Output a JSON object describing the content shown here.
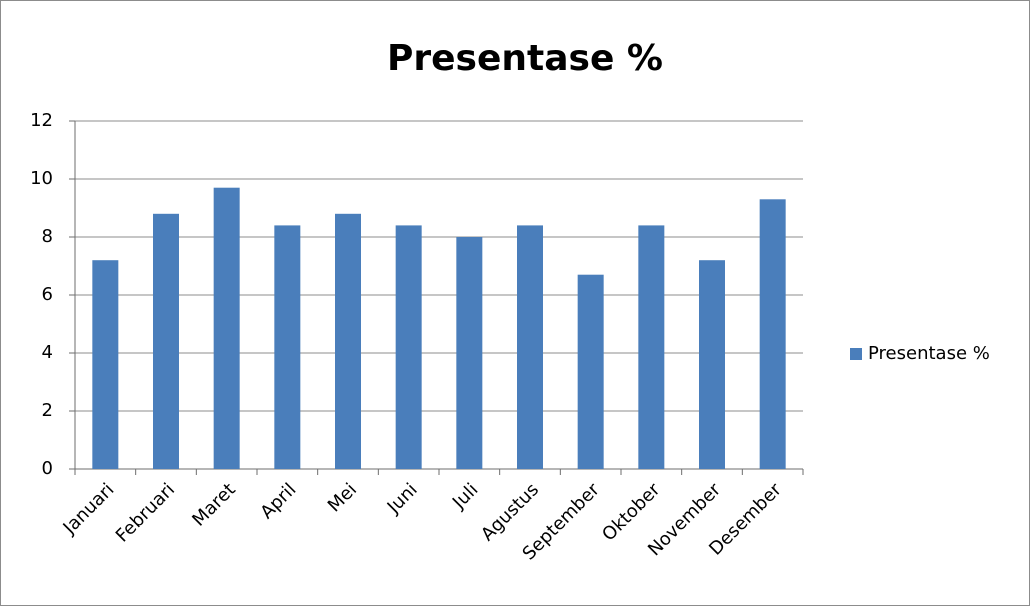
{
  "chart_data": {
    "type": "bar",
    "title": "Presentase %",
    "categories": [
      "Januari",
      "Februari",
      "Maret",
      "April",
      "Mei",
      "Juni",
      "Juli",
      "Agustus",
      "September",
      "Oktober",
      "November",
      "Desember"
    ],
    "series": [
      {
        "name": "Presentase %",
        "color": "#4a7ebb",
        "values": [
          7.2,
          8.8,
          9.7,
          8.4,
          8.8,
          8.4,
          8.0,
          8.4,
          6.7,
          8.4,
          7.2,
          9.3
        ]
      }
    ],
    "ylim": [
      0,
      12
    ],
    "yticks": [
      0,
      2,
      4,
      6,
      8,
      10,
      12
    ],
    "grid": true,
    "legend": "right"
  }
}
